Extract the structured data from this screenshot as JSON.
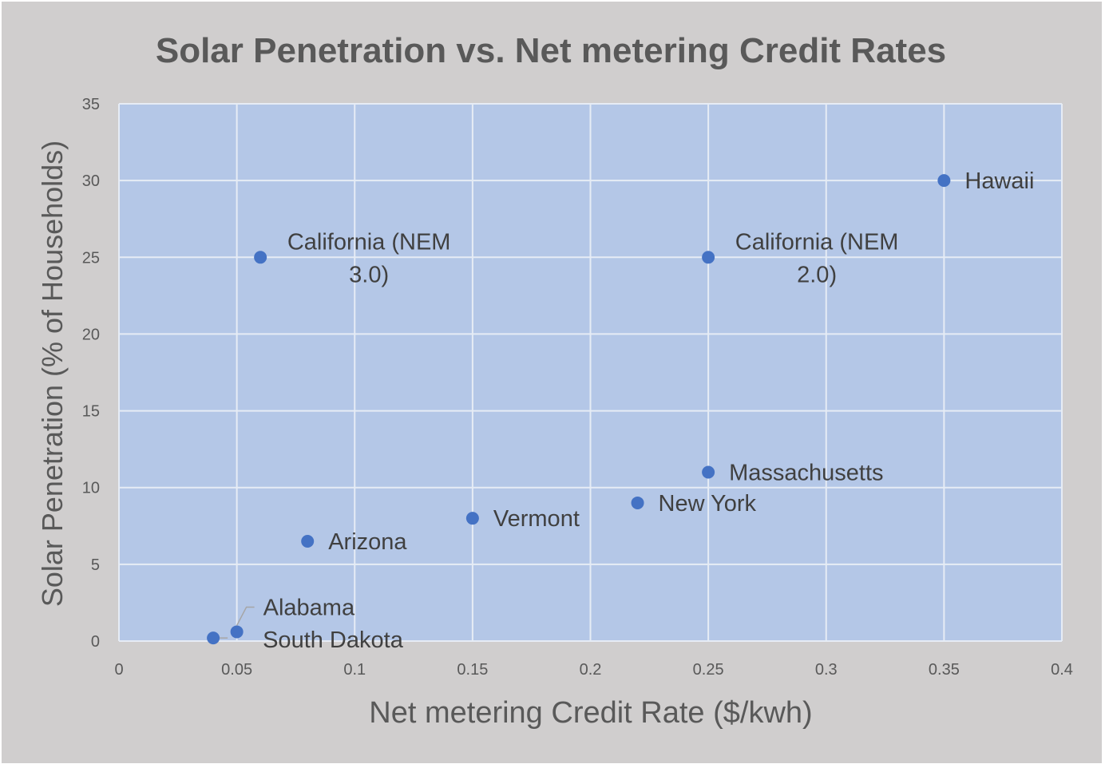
{
  "chart_data": {
    "type": "scatter",
    "title": "Solar Penetration vs. Net metering Credit Rates",
    "xlabel": "Net metering Credit Rate ($/kwh)",
    "ylabel": "Solar Penetration (%  of Households)",
    "xlim": [
      0,
      0.4
    ],
    "ylim": [
      0,
      35
    ],
    "x_ticks": [
      "0",
      "0.05",
      "0.1",
      "0.15",
      "0.2",
      "0.25",
      "0.3",
      "0.35",
      "0.4"
    ],
    "y_ticks": [
      "0",
      "5",
      "10",
      "15",
      "20",
      "25",
      "30",
      "35"
    ],
    "grid": true,
    "legend": "none",
    "points": [
      {
        "label": "Hawaii",
        "x": 0.35,
        "y": 30
      },
      {
        "label": "California (NEM 3.0)",
        "x": 0.06,
        "y": 25
      },
      {
        "label": "California (NEM 2.0)",
        "x": 0.25,
        "y": 25
      },
      {
        "label": "Massachusetts",
        "x": 0.25,
        "y": 11
      },
      {
        "label": "New York",
        "x": 0.22,
        "y": 9
      },
      {
        "label": "Vermont",
        "x": 0.15,
        "y": 8
      },
      {
        "label": "Arizona",
        "x": 0.08,
        "y": 6.5
      },
      {
        "label": "Alabama",
        "x": 0.05,
        "y": 0.6
      },
      {
        "label": "South Dakota",
        "x": 0.04,
        "y": 0.2
      }
    ],
    "colors": {
      "background": "#d0cece",
      "plot_area": "#b4c7e7",
      "marker": "#4472c4",
      "gridline": "#e6ecf5",
      "text": "#595959"
    }
  }
}
